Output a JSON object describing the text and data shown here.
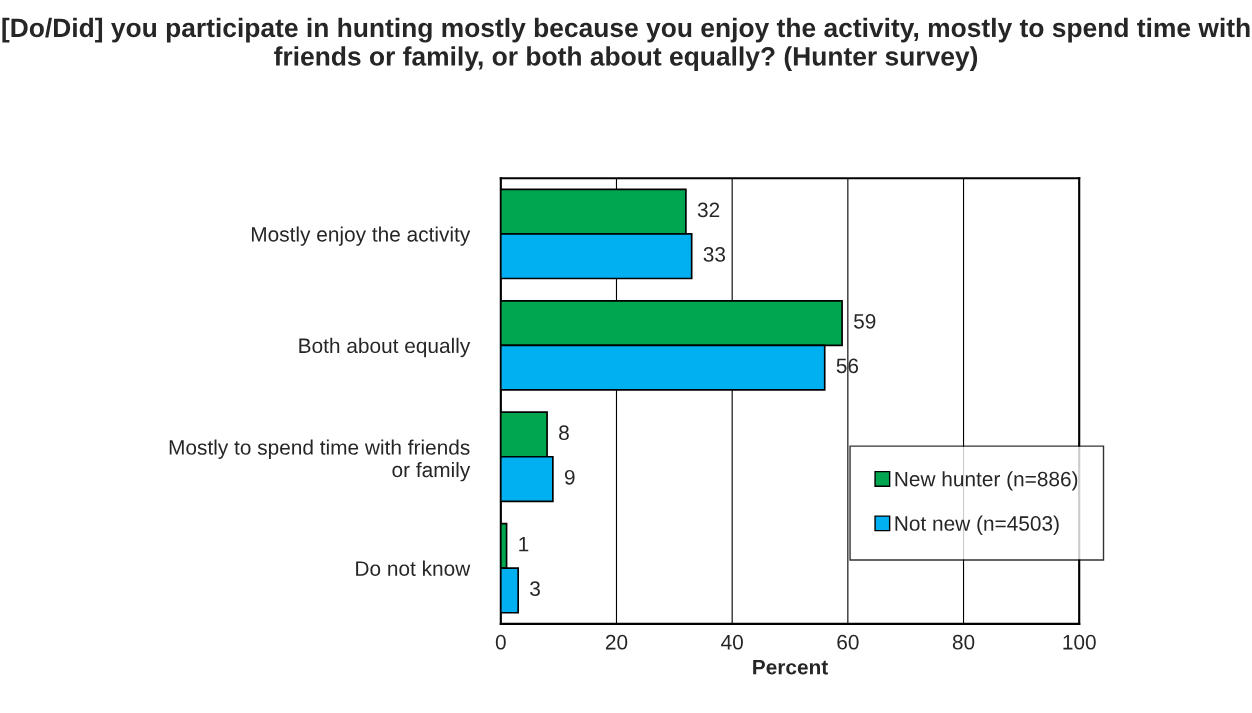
{
  "chart_data": {
    "type": "bar",
    "orientation": "horizontal",
    "title": "[Do/Did] you participate in hunting mostly because you enjoy the activity, mostly to spend time with friends or family, or both about equally? (Hunter survey)",
    "xlabel": "Percent",
    "categories": [
      "Mostly enjoy the activity",
      "Both about equally",
      "Mostly to spend time with friends or family",
      "Do not know"
    ],
    "series": [
      {
        "name": "New hunter (n=886)",
        "color": "#00a650",
        "values": [
          32,
          59,
          8,
          1
        ]
      },
      {
        "name": "Not new (n=4503)",
        "color": "#00b0f0",
        "values": [
          33,
          56,
          9,
          3
        ]
      }
    ],
    "xlim": [
      0,
      100
    ],
    "xticks": [
      0,
      20,
      40,
      60,
      80,
      100
    ],
    "grid": "x",
    "legend": "bottom right",
    "data_labels": true
  }
}
